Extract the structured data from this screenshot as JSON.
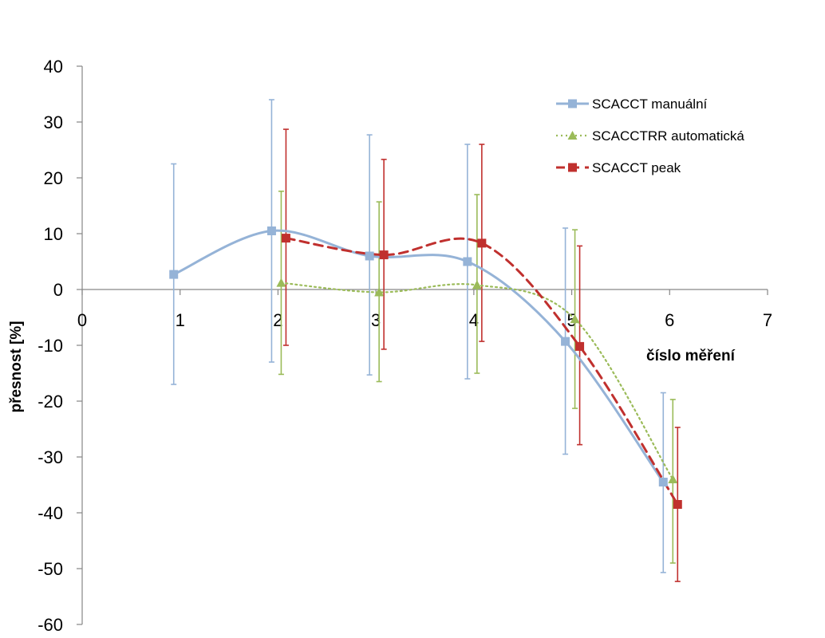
{
  "chart_data": {
    "type": "line",
    "title": "",
    "xlabel": "číslo měření",
    "ylabel": "přesnost [%]",
    "xlim": [
      0,
      7
    ],
    "ylim": [
      -60,
      40
    ],
    "xticks": [
      0,
      1,
      2,
      3,
      4,
      5,
      6,
      7
    ],
    "yticks": [
      40,
      30,
      20,
      10,
      0,
      -10,
      -20,
      -30,
      -40,
      -50,
      -60
    ],
    "grid": false,
    "smooth": true,
    "legend_position": "top-right",
    "series": [
      {
        "name": "SCACCT manuální",
        "color": "#95B3D7",
        "dash": "solid",
        "marker": "square",
        "points": [
          {
            "x": 1,
            "y": 2.7,
            "err_low": -17.0,
            "err_high": 22.5
          },
          {
            "x": 2,
            "y": 10.5,
            "err_low": -13.0,
            "err_high": 34.0
          },
          {
            "x": 3,
            "y": 6.0,
            "err_low": -15.3,
            "err_high": 27.7
          },
          {
            "x": 4,
            "y": 5.0,
            "err_low": -16.0,
            "err_high": 26.0
          },
          {
            "x": 5,
            "y": -9.3,
            "err_low": -29.5,
            "err_high": 11.0
          },
          {
            "x": 6,
            "y": -34.5,
            "err_low": -50.7,
            "err_high": -18.5
          }
        ]
      },
      {
        "name": "SCACCTRR automatická",
        "color": "#9BBB59",
        "dash": "dotted",
        "marker": "triangle",
        "points": [
          {
            "x": 2,
            "y": 1.2,
            "err_low": -15.2,
            "err_high": 17.6
          },
          {
            "x": 3,
            "y": -0.5,
            "err_low": -16.5,
            "err_high": 15.7
          },
          {
            "x": 4,
            "y": 0.8,
            "err_low": -15.0,
            "err_high": 17.0
          },
          {
            "x": 5,
            "y": -5.3,
            "err_low": -21.3,
            "err_high": 10.7
          },
          {
            "x": 6,
            "y": -34.0,
            "err_low": -49.0,
            "err_high": -19.7
          }
        ]
      },
      {
        "name": "SCACCT peak",
        "color": "#C0302E",
        "dash": "dashed",
        "marker": "square",
        "points": [
          {
            "x": 2,
            "y": 9.2,
            "err_low": -10.0,
            "err_high": 28.7
          },
          {
            "x": 3,
            "y": 6.2,
            "err_low": -10.7,
            "err_high": 23.3
          },
          {
            "x": 4,
            "y": 8.3,
            "err_low": -9.3,
            "err_high": 26.0
          },
          {
            "x": 5,
            "y": -10.2,
            "err_low": -27.8,
            "err_high": 7.8
          },
          {
            "x": 6,
            "y": -38.5,
            "err_low": -52.3,
            "err_high": -24.7
          }
        ]
      }
    ]
  }
}
